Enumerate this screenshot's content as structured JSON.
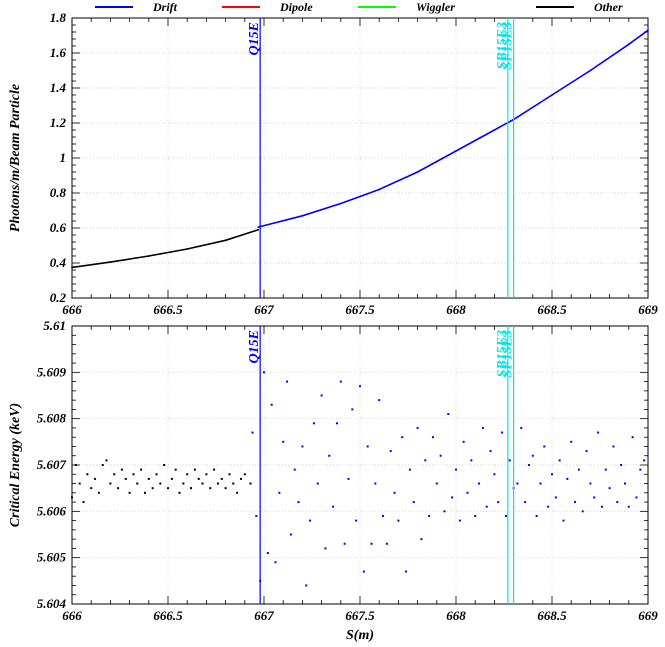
{
  "legend": {
    "items": [
      {
        "label": "Drift",
        "color": "#0000ff"
      },
      {
        "label": "Dipole",
        "color": "#ff0000"
      },
      {
        "label": "Wiggler",
        "color": "#00ff00"
      },
      {
        "label": "Other",
        "color": "#000000"
      }
    ]
  },
  "chart_data": [
    {
      "type": "line",
      "title": "",
      "xlabel": "",
      "ylabel": "Photons/m/Beam Particle",
      "xlim": [
        666,
        669
      ],
      "ylim": [
        0.2,
        1.8
      ],
      "xticks": [
        "666",
        "666.5",
        "667",
        "667.5",
        "668",
        "668.5",
        "669"
      ],
      "yticks": [
        "0.2",
        "0.4",
        "0.6",
        "0.8",
        "1",
        "1.2",
        "1.4",
        "1.6",
        "1.8"
      ],
      "grid": true,
      "series": [
        {
          "name": "Other",
          "color": "#000000",
          "x": [
            666.0,
            666.2,
            666.4,
            666.6,
            666.8,
            666.97
          ],
          "y": [
            0.375,
            0.405,
            0.44,
            0.48,
            0.53,
            0.59
          ]
        },
        {
          "name": "Drift",
          "color": "#0000ff",
          "x": [
            666.97,
            667.2,
            667.4,
            667.6,
            667.8,
            668.0,
            668.2,
            668.3,
            668.5,
            668.7,
            668.9,
            669.0
          ],
          "y": [
            0.605,
            0.67,
            0.74,
            0.82,
            0.92,
            1.04,
            1.16,
            1.22,
            1.36,
            1.5,
            1.65,
            1.73
          ]
        }
      ],
      "markers": [
        {
          "label": "Q15E",
          "x": 666.98,
          "color": "#0000ff"
        },
        {
          "label": "SB15E3",
          "x": 668.27,
          "color": "#00e5e5"
        },
        {
          "label": "SF15E3",
          "x": 668.3,
          "color": "#00e5e5"
        }
      ]
    },
    {
      "type": "scatter",
      "title": "",
      "xlabel": "S(m)",
      "ylabel": "Critical Energy (keV)",
      "xlim": [
        666,
        669
      ],
      "ylim": [
        5.604,
        5.61
      ],
      "xticks": [
        "666",
        "666.5",
        "667",
        "667.5",
        "668",
        "668.5",
        "669"
      ],
      "yticks": [
        "5.604",
        "5.605",
        "5.606",
        "5.607",
        "5.608",
        "5.609",
        "5.61"
      ],
      "grid": true,
      "series": [
        {
          "name": "Other",
          "color": "#000000",
          "x": [
            666.0,
            666.02,
            666.04,
            666.06,
            666.08,
            666.1,
            666.12,
            666.14,
            666.16,
            666.18,
            666.2,
            666.22,
            666.24,
            666.26,
            666.28,
            666.3,
            666.32,
            666.34,
            666.36,
            666.38,
            666.4,
            666.42,
            666.44,
            666.46,
            666.48,
            666.5,
            666.52,
            666.54,
            666.56,
            666.58,
            666.6,
            666.62,
            666.64,
            666.66,
            666.68,
            666.7,
            666.72,
            666.74,
            666.76,
            666.78,
            666.8,
            666.82,
            666.84,
            666.86,
            666.88,
            666.9,
            666.93
          ],
          "y": [
            5.6063,
            5.607,
            5.6066,
            5.6062,
            5.6068,
            5.6065,
            5.6067,
            5.6064,
            5.607,
            5.6071,
            5.6066,
            5.6068,
            5.6065,
            5.6069,
            5.6067,
            5.6064,
            5.6068,
            5.6066,
            5.6069,
            5.6064,
            5.6067,
            5.6065,
            5.6068,
            5.6066,
            5.607,
            5.6065,
            5.6067,
            5.6069,
            5.6064,
            5.6066,
            5.6068,
            5.6065,
            5.6069,
            5.6067,
            5.6066,
            5.6068,
            5.6065,
            5.6069,
            5.6066,
            5.6067,
            5.6065,
            5.6068,
            5.6066,
            5.6064,
            5.6067,
            5.6068,
            5.6066
          ]
        },
        {
          "name": "Drift",
          "color": "#0000ff",
          "x": [
            666.94,
            666.96,
            666.98,
            667.0,
            667.02,
            667.04,
            667.06,
            667.08,
            667.1,
            667.12,
            667.14,
            667.16,
            667.18,
            667.2,
            667.22,
            667.24,
            667.26,
            667.28,
            667.3,
            667.32,
            667.34,
            667.36,
            667.38,
            667.4,
            667.42,
            667.44,
            667.46,
            667.48,
            667.5,
            667.52,
            667.54,
            667.56,
            667.58,
            667.6,
            667.62,
            667.64,
            667.66,
            667.68,
            667.7,
            667.72,
            667.74,
            667.76,
            667.78,
            667.8,
            667.82,
            667.84,
            667.86,
            667.88,
            667.9,
            667.92,
            667.94,
            667.96,
            667.98,
            668.0,
            668.02,
            668.04,
            668.06,
            668.08,
            668.1,
            668.12,
            668.14,
            668.16,
            668.18,
            668.2,
            668.22,
            668.24,
            668.26,
            668.28,
            668.3,
            668.32,
            668.34,
            668.36,
            668.38,
            668.4,
            668.42,
            668.44,
            668.46,
            668.48,
            668.5,
            668.52,
            668.54,
            668.56,
            668.58,
            668.6,
            668.62,
            668.64,
            668.66,
            668.68,
            668.7,
            668.72,
            668.74,
            668.76,
            668.78,
            668.8,
            668.82,
            668.84,
            668.86,
            668.88,
            668.9,
            668.92,
            668.94,
            668.96,
            668.98
          ],
          "y": [
            5.6077,
            5.6059,
            5.6045,
            5.609,
            5.6051,
            5.6083,
            5.6049,
            5.6064,
            5.6075,
            5.6088,
            5.6055,
            5.6069,
            5.6062,
            5.6074,
            5.6044,
            5.6058,
            5.6079,
            5.6066,
            5.6085,
            5.6052,
            5.6072,
            5.6061,
            5.6079,
            5.6088,
            5.6053,
            5.6067,
            5.6082,
            5.6058,
            5.6087,
            5.6047,
            5.6074,
            5.6053,
            5.6066,
            5.6084,
            5.6059,
            5.6053,
            5.6073,
            5.6064,
            5.6058,
            5.6076,
            5.6047,
            5.6069,
            5.6062,
            5.6078,
            5.6054,
            5.6071,
            5.6059,
            5.6076,
            5.6066,
            5.6072,
            5.606,
            5.6081,
            5.6063,
            5.6069,
            5.6058,
            5.6075,
            5.6064,
            5.6071,
            5.6059,
            5.6066,
            5.6078,
            5.6061,
            5.6073,
            5.6068,
            5.6062,
            5.6077,
            5.6059,
            5.6071,
            5.6065,
            5.6066,
            5.6078,
            5.6062,
            5.607,
            5.6072,
            5.6059,
            5.6066,
            5.6074,
            5.6061,
            5.6068,
            5.6063,
            5.6071,
            5.6058,
            5.6067,
            5.6075,
            5.6062,
            5.6069,
            5.606,
            5.6073,
            5.6066,
            5.6063,
            5.6077,
            5.6061,
            5.6069,
            5.6065,
            5.6074,
            5.6062,
            5.607,
            5.6066,
            5.6061,
            5.6076,
            5.6063,
            5.6069,
            5.6071
          ]
        }
      ],
      "markers": [
        {
          "label": "Q15E",
          "x": 666.98,
          "color": "#0000ff"
        },
        {
          "label": "SB15E3",
          "x": 668.27,
          "color": "#00e5e5"
        },
        {
          "label": "SF15E3",
          "x": 668.3,
          "color": "#00e5e5"
        }
      ]
    }
  ]
}
